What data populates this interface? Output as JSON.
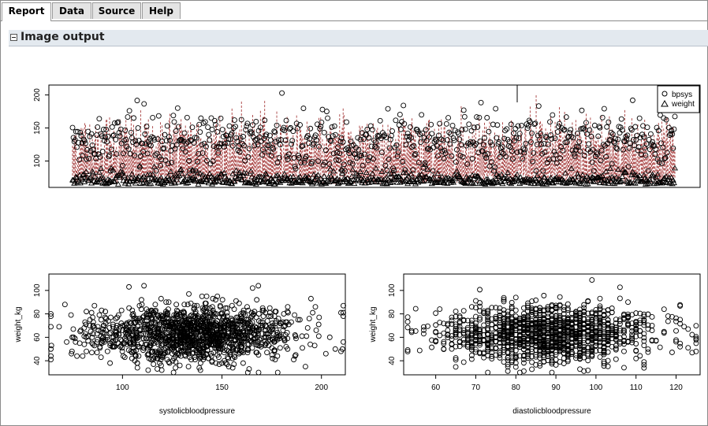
{
  "tabs": [
    {
      "label": "Report",
      "active": true
    },
    {
      "label": "Data",
      "active": false
    },
    {
      "label": "Source",
      "active": false
    },
    {
      "label": "Help",
      "active": false
    }
  ],
  "section": {
    "title": "Image output"
  },
  "colors": {
    "frame": "#8a8a8a",
    "section_bg": "#e3e9ef",
    "segment": "#8b0000",
    "points": "#000000"
  },
  "chart_data": [
    {
      "type": "scatter",
      "description_source": "top plot: index vs value for two series with segments",
      "title": "",
      "xlabel": "",
      "ylabel": "",
      "ylim": [
        60,
        215
      ],
      "yticks": [
        "100",
        "150",
        "200"
      ],
      "xlim": [
        0,
        1000
      ],
      "n_points": 1000,
      "series": [
        {
          "name": "bpsys",
          "marker": "circle",
          "range": [
            85,
            210
          ],
          "center": 130
        },
        {
          "name": "weight",
          "marker": "triangle",
          "range": [
            60,
            100
          ],
          "center": 65
        }
      ],
      "legend": {
        "position": "top-right",
        "entries": [
          "bpsys",
          "weight"
        ]
      }
    },
    {
      "type": "scatter",
      "xlabel": "systolicbloodpressure",
      "ylabel": "weight_kg",
      "xlim": [
        63,
        212
      ],
      "ylim": [
        28,
        114
      ],
      "xticks": [
        "100",
        "150",
        "200"
      ],
      "yticks": [
        "40",
        "60",
        "80",
        "100"
      ],
      "n_points": 1400,
      "x_center": 135,
      "x_spread": 25,
      "y_center": 63,
      "y_spread": 12
    },
    {
      "type": "scatter",
      "xlabel": "diastolicbloodpressure",
      "ylabel": "weight_kg",
      "xlim": [
        52,
        126
      ],
      "ylim": [
        28,
        114
      ],
      "xticks": [
        "60",
        "70",
        "80",
        "90",
        "100",
        "110",
        "120"
      ],
      "yticks": [
        "40",
        "60",
        "80",
        "100"
      ],
      "n_points": 1400,
      "x_center": 88,
      "x_spread": 13,
      "y_center": 63,
      "y_spread": 12
    }
  ]
}
